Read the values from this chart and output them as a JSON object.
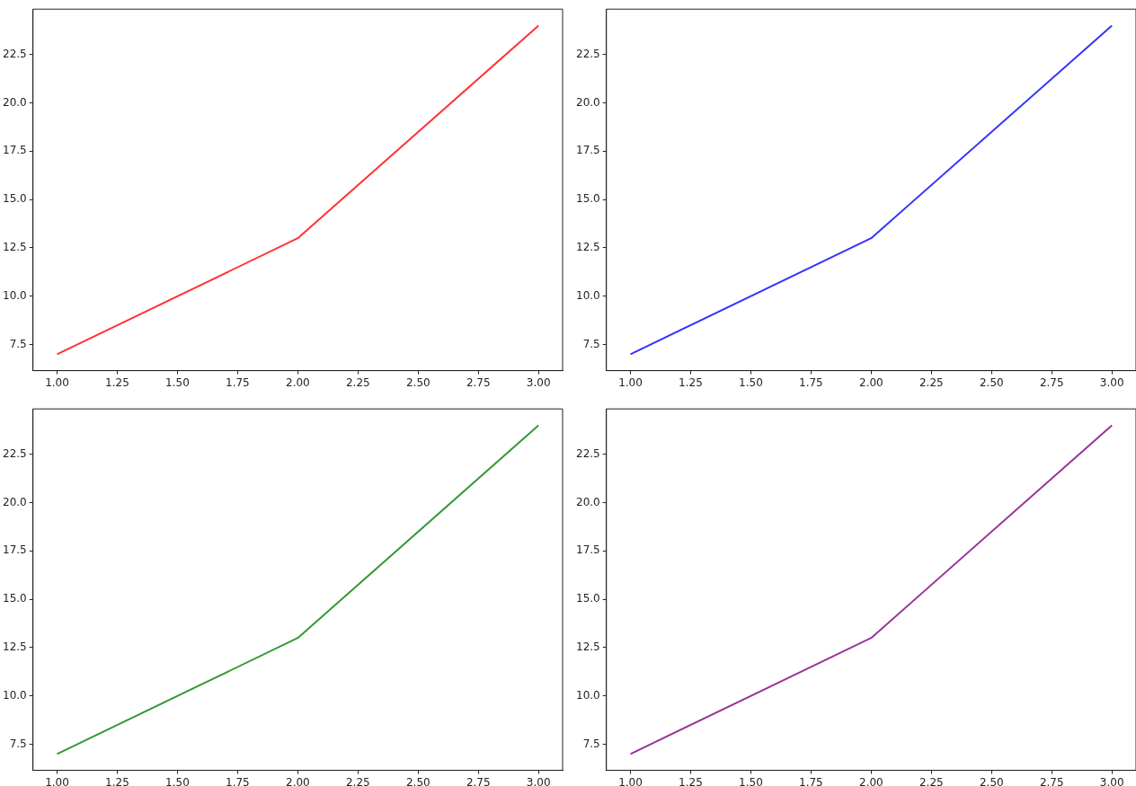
{
  "chart_data": [
    {
      "type": "line",
      "x": [
        1,
        2,
        3
      ],
      "series": [
        {
          "color": "#ff3333",
          "values": [
            7,
            13,
            24
          ]
        }
      ],
      "xlim": [
        0.9,
        3.1
      ],
      "ylim": [
        6.15,
        24.85
      ],
      "xticks": [
        {
          "value": 1,
          "label": "1.00"
        },
        {
          "value": 1.25,
          "label": "1.25"
        },
        {
          "value": 1.5,
          "label": "1.50"
        },
        {
          "value": 1.75,
          "label": "1.75"
        },
        {
          "value": 2,
          "label": "2.00"
        },
        {
          "value": 2.25,
          "label": "2.25"
        },
        {
          "value": 2.5,
          "label": "2.50"
        },
        {
          "value": 2.75,
          "label": "2.75"
        },
        {
          "value": 3,
          "label": "3.00"
        }
      ],
      "yticks": [
        7.5,
        {
          "value": 10,
          "label": "10.0"
        },
        12.5,
        {
          "value": 15,
          "label": "15.0"
        },
        17.5,
        {
          "value": 20,
          "label": "20.0"
        },
        22.5
      ],
      "marker": "none",
      "line_style": "solid"
    },
    {
      "type": "line",
      "x": [
        1,
        2,
        3
      ],
      "series": [
        {
          "color": "#3333ff",
          "values": [
            7,
            13,
            24
          ]
        }
      ],
      "xlim": [
        0.9,
        3.1
      ],
      "ylim": [
        6.15,
        24.85
      ],
      "xticks": [
        {
          "value": 1,
          "label": "1.00"
        },
        {
          "value": 1.25,
          "label": "1.25"
        },
        {
          "value": 1.5,
          "label": "1.50"
        },
        {
          "value": 1.75,
          "label": "1.75"
        },
        {
          "value": 2,
          "label": "2.00"
        },
        {
          "value": 2.25,
          "label": "2.25"
        },
        {
          "value": 2.5,
          "label": "2.50"
        },
        {
          "value": 2.75,
          "label": "2.75"
        },
        {
          "value": 3,
          "label": "3.00"
        }
      ],
      "yticks": [
        7.5,
        {
          "value": 10,
          "label": "10.0"
        },
        12.5,
        {
          "value": 15,
          "label": "15.0"
        },
        17.5,
        {
          "value": 20,
          "label": "20.0"
        },
        22.5
      ],
      "marker": "none",
      "line_style": "solid"
    },
    {
      "type": "line",
      "x": [
        1,
        2,
        3
      ],
      "series": [
        {
          "color": "#339933",
          "values": [
            7,
            13,
            24
          ]
        }
      ],
      "xlim": [
        0.9,
        3.1
      ],
      "ylim": [
        6.15,
        24.85
      ],
      "xticks": [
        {
          "value": 1,
          "label": "1.00"
        },
        {
          "value": 1.25,
          "label": "1.25"
        },
        {
          "value": 1.5,
          "label": "1.50"
        },
        {
          "value": 1.75,
          "label": "1.75"
        },
        {
          "value": 2,
          "label": "2.00"
        },
        {
          "value": 2.25,
          "label": "2.25"
        },
        {
          "value": 2.5,
          "label": "2.50"
        },
        {
          "value": 2.75,
          "label": "2.75"
        },
        {
          "value": 3,
          "label": "3.00"
        }
      ],
      "yticks": [
        7.5,
        {
          "value": 10,
          "label": "10.0"
        },
        12.5,
        {
          "value": 15,
          "label": "15.0"
        },
        17.5,
        {
          "value": 20,
          "label": "20.0"
        },
        22.5
      ],
      "marker": "none",
      "line_style": "solid"
    },
    {
      "type": "line",
      "x": [
        1,
        2,
        3
      ],
      "series": [
        {
          "color": "#993399",
          "values": [
            7,
            13,
            24
          ]
        }
      ],
      "xlim": [
        0.9,
        3.1
      ],
      "ylim": [
        6.15,
        24.85
      ],
      "xticks": [
        {
          "value": 1,
          "label": "1.00"
        },
        {
          "value": 1.25,
          "label": "1.25"
        },
        {
          "value": 1.5,
          "label": "1.50"
        },
        {
          "value": 1.75,
          "label": "1.75"
        },
        {
          "value": 2,
          "label": "2.00"
        },
        {
          "value": 2.25,
          "label": "2.25"
        },
        {
          "value": 2.5,
          "label": "2.50"
        },
        {
          "value": 2.75,
          "label": "2.75"
        },
        {
          "value": 3,
          "label": "3.00"
        }
      ],
      "yticks": [
        7.5,
        {
          "value": 10,
          "label": "10.0"
        },
        12.5,
        {
          "value": 15,
          "label": "15.0"
        },
        17.5,
        {
          "value": 20,
          "label": "20.0"
        },
        22.5
      ],
      "marker": "none",
      "line_style": "solid"
    }
  ]
}
